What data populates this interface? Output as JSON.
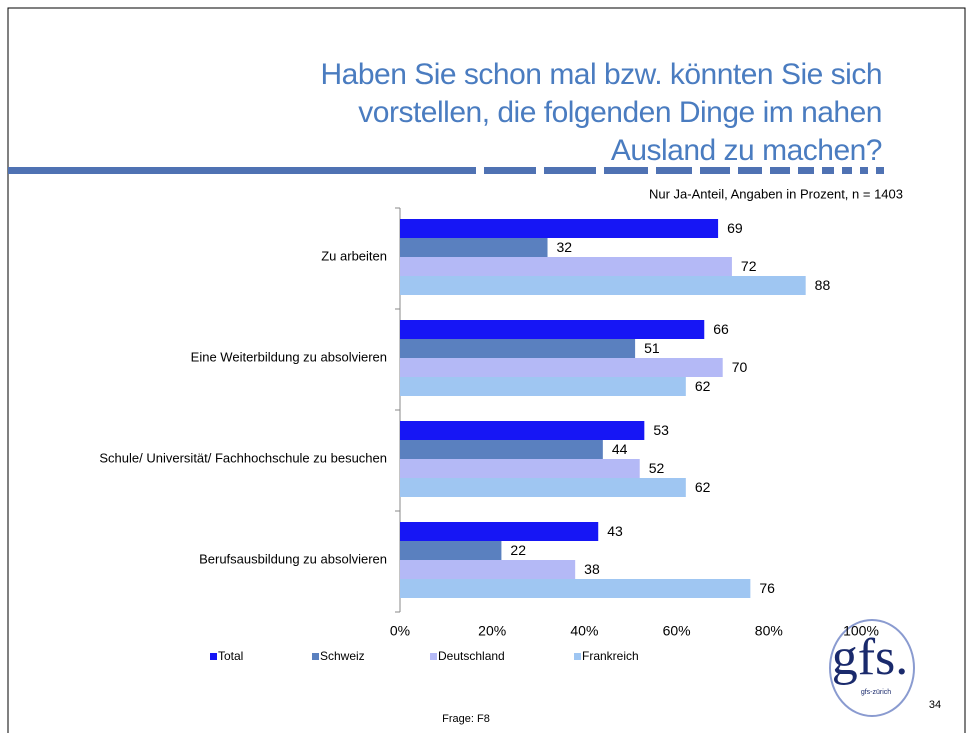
{
  "chart_data": {
    "type": "hbar",
    "title": "Haben Sie schon mal bzw. könnten Sie sich vorstellen, die folgenden Dinge im nahen Ausland zu machen?",
    "subtitle": "Nur Ja-Anteil, Angaben in Prozent, n = 1403",
    "categories": [
      "Zu arbeiten",
      "Eine Weiterbildung zu absolvieren",
      "Schule/ Universität/ Fachhochschule zu besuchen",
      "Berufsausbildung zu absolvieren"
    ],
    "series": [
      {
        "name": "Total",
        "color": "#1616f5",
        "values": [
          69,
          66,
          53,
          43
        ]
      },
      {
        "name": "Schweiz",
        "color": "#5a80bf",
        "values": [
          32,
          51,
          44,
          22
        ]
      },
      {
        "name": "Deutschland",
        "color": "#b4b9f6",
        "values": [
          72,
          70,
          52,
          38
        ]
      },
      {
        "name": "Frankreich",
        "color": "#9fc6f2",
        "values": [
          88,
          62,
          62,
          76
        ]
      }
    ],
    "xlim": [
      0,
      100
    ],
    "xticks": [
      {
        "value": 0,
        "label": "0%"
      },
      {
        "value": 20,
        "label": "20%"
      },
      {
        "value": 40,
        "label": "40%"
      },
      {
        "value": 60,
        "label": "60%"
      },
      {
        "value": 80,
        "label": "80%"
      },
      {
        "value": 100,
        "label": "100%"
      }
    ],
    "legend": "bottom"
  },
  "slide": {
    "footer": "Frage: F8",
    "page_number": "34",
    "logo": "gfs.",
    "logo_sub": "gfs-zürich"
  }
}
